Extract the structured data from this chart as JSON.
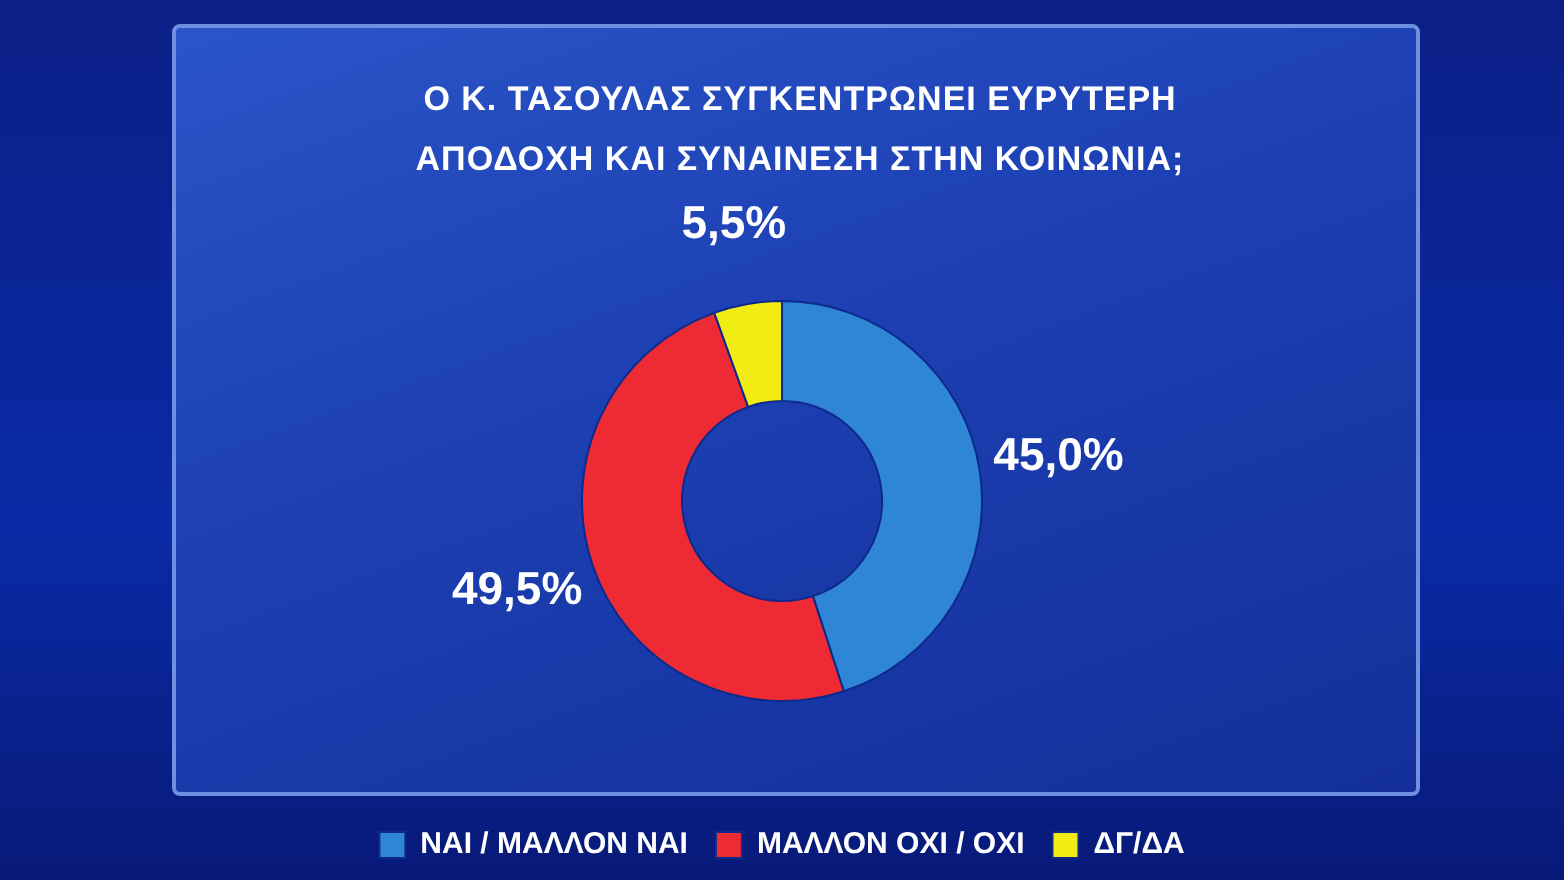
{
  "chart_data": {
    "type": "donut",
    "title": "Ο Κ. ΤΑΣΟΥΛΑΣ ΣΥΓΚΕΝΤΡΩΝΕΙ ΕΥΡΥΤΕΡΗ ΑΠΟΔΟΧΗ ΚΑΙ ΣΥΝΑΙΝΕΣΗ ΣΤΗΝ ΚΟΙΝΩΝΙΑ;",
    "categories": [
      "ΝΑΙ / ΜΑΛΛΟΝ ΝΑΙ",
      "ΜΑΛΛΟΝ ΟΧΙ / ΟΧΙ",
      "ΔΓ/ΔΑ"
    ],
    "values": [
      45.0,
      49.5,
      5.5
    ],
    "colors": [
      "#2f86d6",
      "#ee2b35",
      "#f0ec14"
    ],
    "value_labels": [
      "45,0%",
      "49,5%",
      "5,5%"
    ],
    "legend": "bottom"
  }
}
